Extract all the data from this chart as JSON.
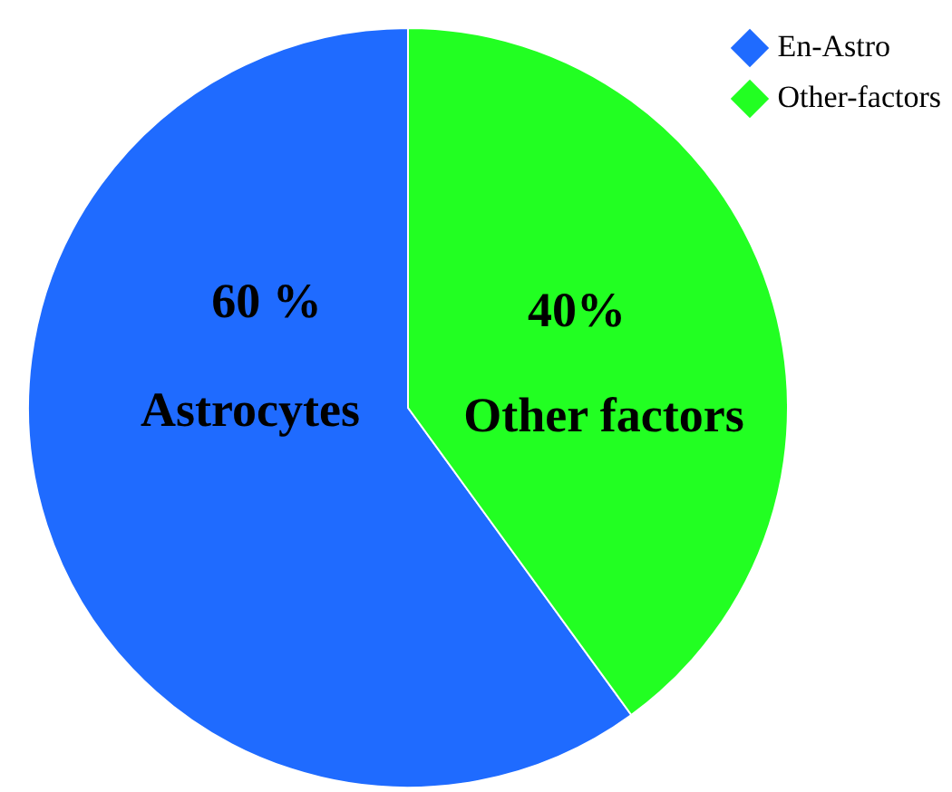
{
  "chart_data": {
    "type": "pie",
    "categories": [
      "En-Astro",
      "Other-factors"
    ],
    "values": [
      60,
      40
    ],
    "colors": [
      "#1f6bff",
      "#22ff22"
    ],
    "value_labels": [
      "60 %",
      "40%"
    ],
    "annotations": [
      "Astrocytes",
      "Other factors"
    ],
    "legend": "top right"
  }
}
